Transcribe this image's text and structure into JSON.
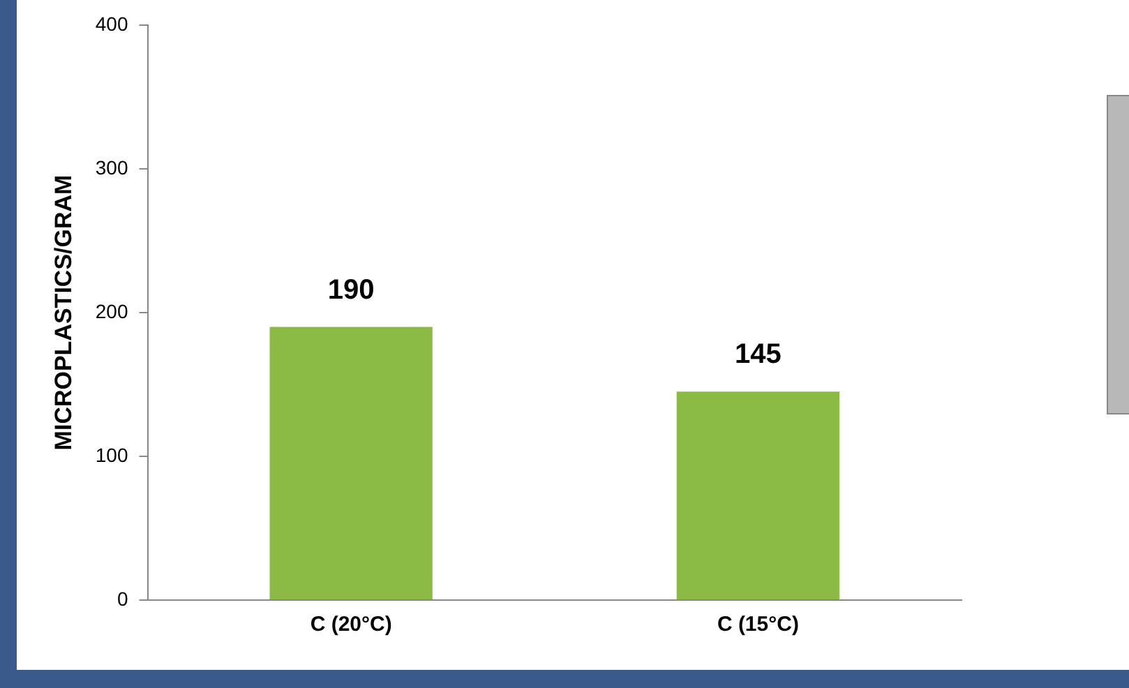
{
  "chart_data": {
    "type": "bar",
    "ylabel": "MICROPLASTICS/GRAM",
    "categories": [
      "C (20°C)",
      "C (15°C)"
    ],
    "values": [
      190,
      145
    ],
    "color": "#8cbb45",
    "ylim": [
      0,
      400
    ],
    "yticks": [
      0,
      100,
      200,
      300,
      400
    ],
    "grid": false,
    "data_labels": true,
    "legend": false
  }
}
